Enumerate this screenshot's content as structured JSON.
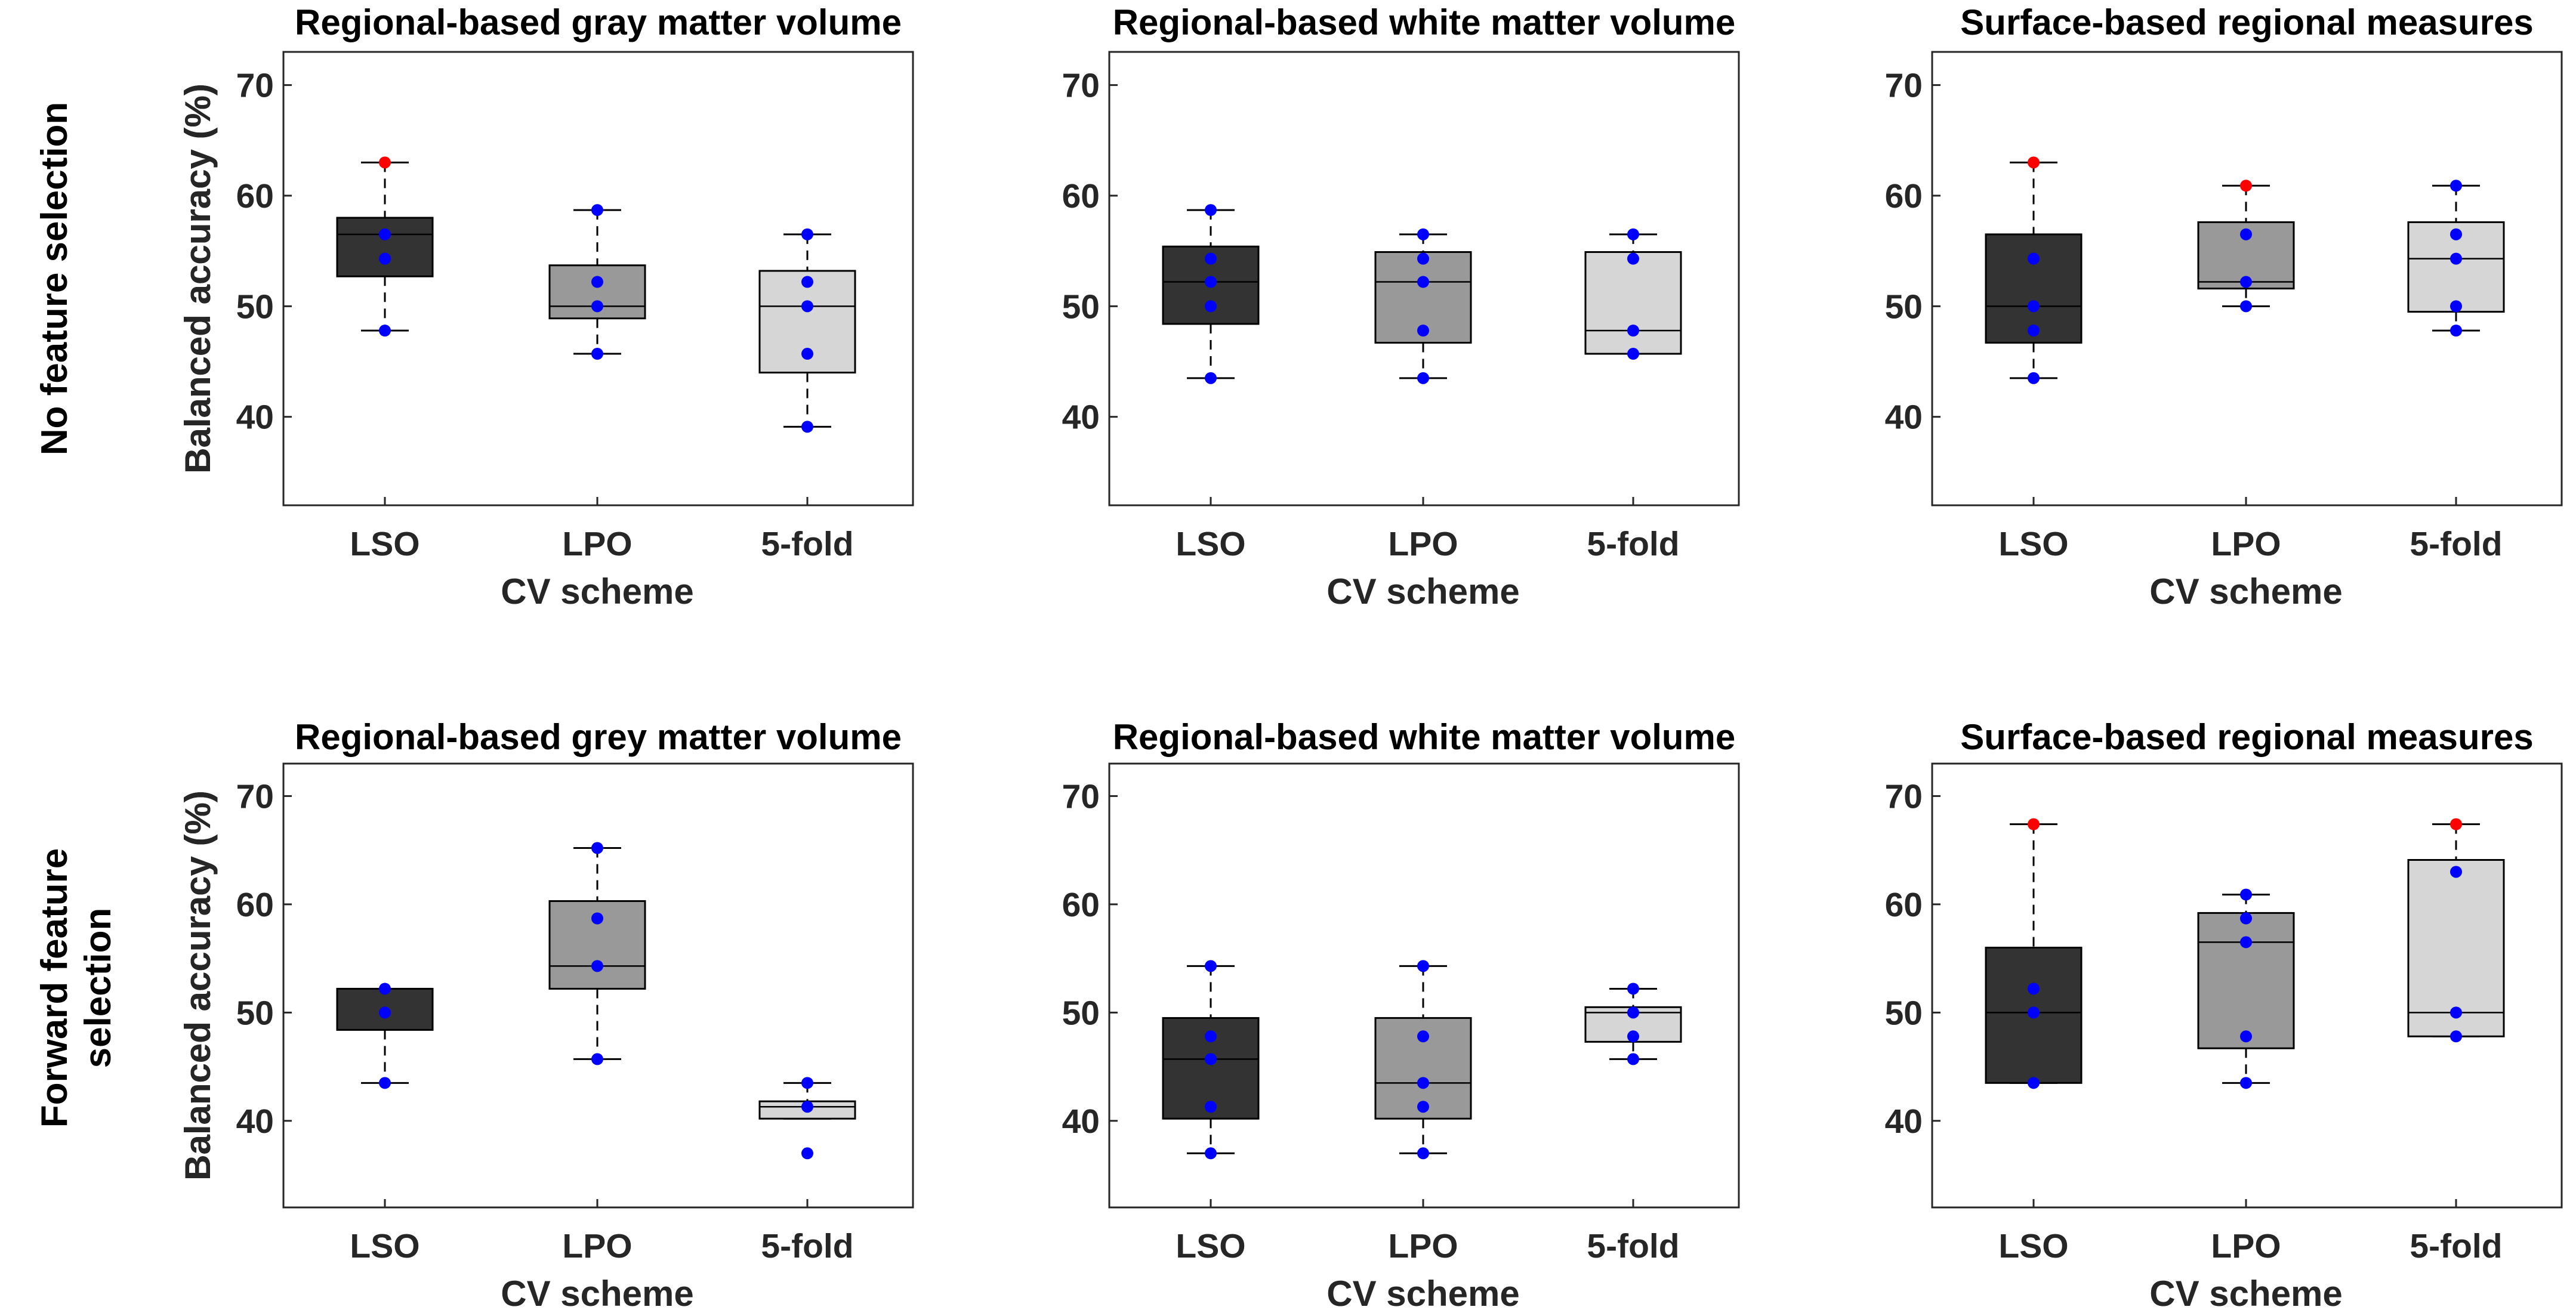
{
  "row_labels": {
    "row0": [
      "No feature selection"
    ],
    "row1": [
      "Forward feature",
      "selection"
    ]
  },
  "colors": {
    "LSO_box": "#333333",
    "LPO_box": "#999999",
    "5fold_box": "#d6d6d6",
    "point": "#0000ff",
    "max_point": "#ff0000"
  },
  "chart_data": [
    {
      "type": "box",
      "title": "Regional-based gray matter volume",
      "xlabel": "CV scheme",
      "ylabel": "Balanced accuracy (%)",
      "ylim": [
        32,
        73
      ],
      "yticks": [
        40,
        50,
        60,
        70
      ],
      "categories": [
        "LSO",
        "LPO",
        "5-fold"
      ],
      "boxes": [
        {
          "q1": 52.7,
          "median": 56.5,
          "q3": 58.0,
          "whisker_low": 47.8,
          "whisker_high": 63.0,
          "points": [
            63.0,
            56.5,
            54.3,
            47.8
          ],
          "max_point_red": true
        },
        {
          "q1": 48.9,
          "median": 50.0,
          "q3": 53.7,
          "whisker_low": 45.7,
          "whisker_high": 58.7,
          "points": [
            58.7,
            52.2,
            50.0,
            45.7
          ],
          "max_point_red": false
        },
        {
          "q1": 44.0,
          "median": 50.0,
          "q3": 53.2,
          "whisker_low": 39.1,
          "whisker_high": 56.5,
          "points": [
            56.5,
            52.2,
            50.0,
            45.7,
            39.1
          ],
          "max_point_red": false
        }
      ]
    },
    {
      "type": "box",
      "title": "Regional-based white matter volume",
      "xlabel": "CV scheme",
      "ylabel": "Balanced accuracy (%)",
      "ylim": [
        32,
        73
      ],
      "yticks": [
        40,
        50,
        60,
        70
      ],
      "categories": [
        "LSO",
        "LPO",
        "5-fold"
      ],
      "boxes": [
        {
          "q1": 48.4,
          "median": 52.2,
          "q3": 55.4,
          "whisker_low": 43.5,
          "whisker_high": 58.7,
          "points": [
            58.7,
            54.3,
            52.2,
            50.0,
            43.5
          ],
          "max_point_red": false
        },
        {
          "q1": 46.7,
          "median": 52.2,
          "q3": 54.9,
          "whisker_low": 43.5,
          "whisker_high": 56.5,
          "points": [
            56.5,
            54.3,
            52.2,
            47.8,
            43.5
          ],
          "max_point_red": false
        },
        {
          "q1": 45.7,
          "median": 47.8,
          "q3": 54.9,
          "whisker_low": 45.7,
          "whisker_high": 56.5,
          "points": [
            56.5,
            54.3,
            47.8,
            45.7
          ],
          "max_point_red": false
        }
      ]
    },
    {
      "type": "box",
      "title": "Surface-based regional measures",
      "xlabel": "CV scheme",
      "ylabel": "Balanced accuracy (%)",
      "ylim": [
        32,
        73
      ],
      "yticks": [
        40,
        50,
        60,
        70
      ],
      "categories": [
        "LSO",
        "LPO",
        "5-fold"
      ],
      "boxes": [
        {
          "q1": 46.7,
          "median": 50.0,
          "q3": 56.5,
          "whisker_low": 43.5,
          "whisker_high": 63.0,
          "points": [
            63.0,
            54.3,
            50.0,
            47.8,
            43.5
          ],
          "max_point_red": true
        },
        {
          "q1": 51.6,
          "median": 52.2,
          "q3": 57.6,
          "whisker_low": 50.0,
          "whisker_high": 60.9,
          "points": [
            60.9,
            56.5,
            52.2,
            50.0
          ],
          "max_point_red": true
        },
        {
          "q1": 49.5,
          "median": 54.3,
          "q3": 57.6,
          "whisker_low": 47.8,
          "whisker_high": 60.9,
          "points": [
            60.9,
            56.5,
            54.3,
            50.0,
            47.8
          ],
          "max_point_red": false
        }
      ]
    },
    {
      "type": "box",
      "title": "Regional-based grey matter volume",
      "xlabel": "CV scheme",
      "ylabel": "Balanced accuracy (%)",
      "ylim": [
        32,
        73
      ],
      "yticks": [
        40,
        50,
        60,
        70
      ],
      "categories": [
        "LSO",
        "LPO",
        "5-fold"
      ],
      "boxes": [
        {
          "q1": 48.4,
          "median": 52.2,
          "q3": 52.2,
          "whisker_low": 43.5,
          "whisker_high": 52.2,
          "points": [
            52.2,
            50.0,
            43.5
          ],
          "max_point_red": false
        },
        {
          "q1": 52.2,
          "median": 54.3,
          "q3": 60.3,
          "whisker_low": 45.7,
          "whisker_high": 65.2,
          "points": [
            65.2,
            58.7,
            54.3,
            45.7
          ],
          "max_point_red": false
        },
        {
          "q1": 40.2,
          "median": 41.3,
          "q3": 41.8,
          "whisker_low": 40.2,
          "whisker_high": 43.5,
          "points": [
            43.5,
            41.3,
            37.0
          ],
          "max_point_red": false
        }
      ]
    },
    {
      "type": "box",
      "title": "Regional-based white matter volume",
      "xlabel": "CV scheme",
      "ylabel": "Balanced accuracy (%)",
      "ylim": [
        32,
        73
      ],
      "yticks": [
        40,
        50,
        60,
        70
      ],
      "categories": [
        "LSO",
        "LPO",
        "5-fold"
      ],
      "boxes": [
        {
          "q1": 40.2,
          "median": 45.7,
          "q3": 49.5,
          "whisker_low": 37.0,
          "whisker_high": 54.3,
          "points": [
            54.3,
            47.8,
            45.7,
            41.3,
            37.0
          ],
          "max_point_red": false
        },
        {
          "q1": 40.2,
          "median": 43.5,
          "q3": 49.5,
          "whisker_low": 37.0,
          "whisker_high": 54.3,
          "points": [
            54.3,
            47.8,
            43.5,
            41.3,
            37.0
          ],
          "max_point_red": false
        },
        {
          "q1": 47.3,
          "median": 50.0,
          "q3": 50.5,
          "whisker_low": 45.7,
          "whisker_high": 52.2,
          "points": [
            52.2,
            50.0,
            47.8,
            45.7
          ],
          "max_point_red": false
        }
      ]
    },
    {
      "type": "box",
      "title": "Surface-based regional measures",
      "xlabel": "CV scheme",
      "ylabel": "Balanced accuracy (%)",
      "ylim": [
        32,
        73
      ],
      "yticks": [
        40,
        50,
        60,
        70
      ],
      "categories": [
        "LSO",
        "LPO",
        "5-fold"
      ],
      "boxes": [
        {
          "q1": 43.5,
          "median": 50.0,
          "q3": 56.0,
          "whisker_low": 43.5,
          "whisker_high": 67.4,
          "points": [
            67.4,
            52.2,
            50.0,
            43.5
          ],
          "max_point_red": true
        },
        {
          "q1": 46.7,
          "median": 56.5,
          "q3": 59.2,
          "whisker_low": 43.5,
          "whisker_high": 60.9,
          "points": [
            60.9,
            58.7,
            56.5,
            47.8,
            43.5
          ],
          "max_point_red": false
        },
        {
          "q1": 47.8,
          "median": 50.0,
          "q3": 64.1,
          "whisker_low": 47.8,
          "whisker_high": 67.4,
          "points": [
            67.4,
            63.0,
            50.0,
            47.8
          ],
          "max_point_red": true
        }
      ]
    }
  ]
}
